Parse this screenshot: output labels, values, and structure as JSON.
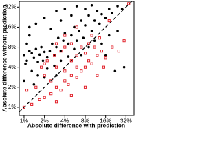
{
  "chart_data": {
    "type": "scatter",
    "log_x": true,
    "log_y": true,
    "diagonal": true,
    "x_label": "Absolute difference with prediction",
    "y_label": "Absolute difference without prediction",
    "xlim": [
      0.85,
      42
    ],
    "ylim": [
      0.75,
      39
    ],
    "xticks": [
      {
        "value": 1,
        "label": "1%"
      },
      {
        "value": 2,
        "label": "2%"
      },
      {
        "value": 4,
        "label": "4%"
      },
      {
        "value": 8,
        "label": "8%"
      },
      {
        "value": 16,
        "label": "16%"
      },
      {
        "value": 32,
        "label": "32%"
      }
    ],
    "yticks": [
      {
        "value": 1,
        "label": "1%"
      },
      {
        "value": 2,
        "label": "2%"
      },
      {
        "value": 4,
        "label": "4%"
      },
      {
        "value": 8,
        "label": "8%"
      },
      {
        "value": 16,
        "label": "16%"
      },
      {
        "value": 32,
        "label": "32%"
      }
    ],
    "series": [
      {
        "color": "#000000",
        "marker": "dot",
        "x": [
          1.0,
          1.1,
          1.2,
          1.05,
          1.3,
          1.4,
          1.5,
          1.6,
          1.7,
          1.8,
          1.9,
          2.0,
          2.2,
          2.4,
          2.6,
          2.8,
          3,
          3.2,
          3.5,
          3.8,
          4,
          4.5,
          5,
          5.5,
          6,
          6.5,
          7,
          7.5,
          8,
          9,
          10,
          11,
          12,
          13,
          14,
          16,
          18,
          20,
          24,
          28,
          1.2,
          1.5,
          2,
          2.5,
          3,
          3.5,
          4,
          5,
          6,
          1.1,
          1.3,
          1.6,
          2.2,
          2.8,
          3.5,
          4.5,
          5.5,
          7,
          9,
          11,
          14,
          18,
          24,
          1.0,
          1.4,
          2,
          3,
          1.2,
          8,
          10,
          22,
          30,
          16
        ],
        "values": [
          6,
          5,
          7,
          4.5,
          6.5,
          5.5,
          7.5,
          4.8,
          6.2,
          8,
          5,
          6.8,
          5.6,
          7,
          9,
          6,
          8,
          11,
          7,
          10,
          13,
          9,
          12,
          16,
          10,
          14,
          20,
          11,
          17,
          24,
          14,
          20,
          28,
          18,
          25,
          22,
          30,
          26,
          33,
          30,
          12,
          18,
          22,
          15,
          28,
          20,
          30,
          24,
          33,
          9,
          3.5,
          3,
          3.8,
          4.2,
          5,
          5.8,
          7.5,
          6,
          8,
          10,
          9,
          12,
          14,
          2.5,
          2.2,
          2.8,
          3,
          16,
          30,
          34,
          3.5,
          4,
          6
        ]
      },
      {
        "color": "#e0141e",
        "marker": "square",
        "x": [
          1.0,
          1.3,
          1.7,
          2,
          2.5,
          3,
          3.5,
          4,
          4.5,
          5,
          6,
          7,
          8,
          9,
          10,
          12,
          14,
          16,
          20,
          25,
          30,
          1.5,
          2,
          2.5,
          3,
          4,
          5,
          6,
          7,
          8,
          9,
          11,
          13,
          1.8,
          2.2,
          2.8,
          3.5,
          4,
          5,
          6,
          3,
          5,
          8,
          12,
          15,
          1.1,
          2,
          3,
          4,
          6,
          35,
          18,
          10
        ],
        "values": [
          1.0,
          1.1,
          1.3,
          1.4,
          1.6,
          2,
          1.8,
          2.5,
          2.2,
          3,
          2.8,
          3.5,
          4,
          5,
          4.5,
          6,
          7,
          5.5,
          8,
          7,
          10,
          2,
          3,
          2.5,
          4,
          3.5,
          5,
          6,
          8,
          6.5,
          9,
          8,
          11,
          4,
          5,
          6,
          7,
          8,
          9,
          4,
          1.2,
          1.5,
          2,
          3,
          4,
          1.8,
          4.5,
          9,
          12,
          16,
          36,
          20,
          12
        ]
      }
    ]
  }
}
